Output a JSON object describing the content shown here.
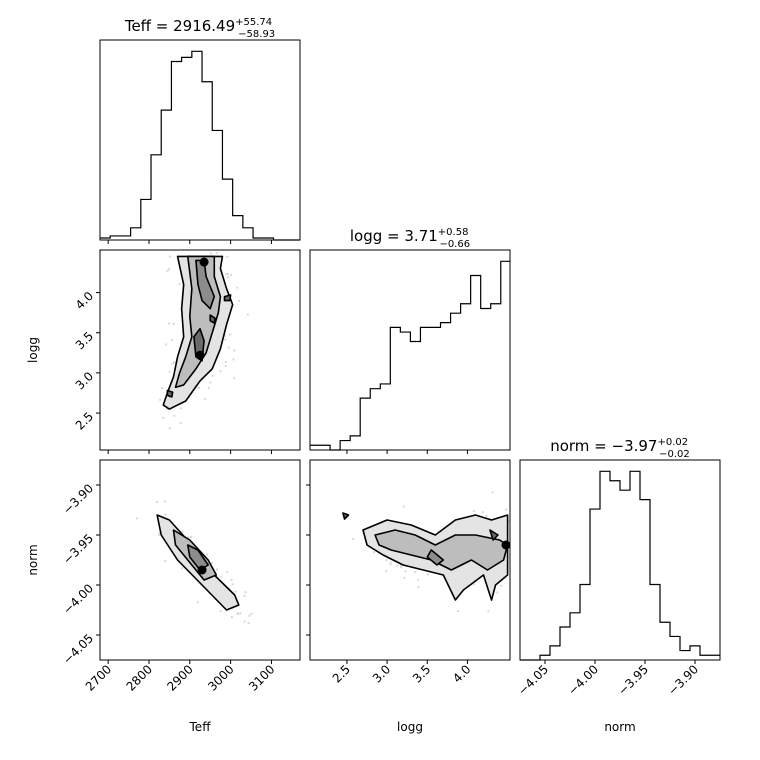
{
  "chart_data": {
    "type": "corner",
    "parameters": [
      {
        "name": "Teff",
        "title": "Teff = 2916.49",
        "title_plus": "+55.74",
        "title_minus": "−58.93",
        "range": [
          2680,
          3170
        ],
        "ticks": [
          2700,
          2800,
          2900,
          3000,
          3100
        ],
        "tick_labels": [
          "2700",
          "2800",
          "2900",
          "3000",
          "3100"
        ],
        "xlabel": "Teff",
        "ylabel": "",
        "hist": {
          "edges": [
            2680,
            2705,
            2730,
            2755,
            2780,
            2805,
            2830,
            2855,
            2880,
            2905,
            2930,
            2955,
            2980,
            3005,
            3030,
            3055,
            3080,
            3105,
            3130,
            3170
          ],
          "counts": [
            1,
            2,
            2,
            6,
            20,
            42,
            64,
            88,
            90,
            93,
            78,
            54,
            30,
            12,
            6,
            1,
            1,
            0,
            0
          ]
        }
      },
      {
        "name": "logg",
        "title": "logg = 3.71",
        "title_plus": "+0.58",
        "title_minus": "−0.66",
        "range": [
          2.04,
          4.53
        ],
        "ticks": [
          2.5,
          3.0,
          3.5,
          4.0
        ],
        "tick_labels": [
          "2.5",
          "3.0",
          "3.5",
          "4.0"
        ],
        "xlabel": "logg",
        "ylabel": "logg",
        "hist": {
          "edges": [
            2.04,
            2.165,
            2.29,
            2.415,
            2.54,
            2.665,
            2.79,
            2.915,
            3.04,
            3.165,
            3.29,
            3.415,
            3.54,
            3.665,
            3.79,
            3.915,
            4.04,
            4.165,
            4.29,
            4.415,
            4.53
          ],
          "counts": [
            1,
            1,
            0,
            2,
            3,
            11,
            13,
            14,
            26,
            25,
            23,
            26,
            26,
            27,
            29,
            31,
            37,
            30,
            31,
            40
          ]
        }
      },
      {
        "name": "norm",
        "title": "norm = −3.97",
        "title_plus": "+0.02",
        "title_minus": "−0.02",
        "range": [
          -4.075,
          -3.875
        ],
        "ticks": [
          -4.05,
          -4.0,
          -3.95,
          -3.9
        ],
        "tick_labels": [
          "−4.05",
          "−4.00",
          "−3.95",
          "−3.90"
        ],
        "xlabel": "norm",
        "ylabel": "norm",
        "hist": {
          "edges": [
            -4.075,
            -4.065,
            -4.055,
            -4.045,
            -4.035,
            -4.025,
            -4.015,
            -4.005,
            -3.995,
            -3.985,
            -3.975,
            -3.965,
            -3.955,
            -3.945,
            -3.935,
            -3.925,
            -3.915,
            -3.905,
            -3.895,
            -3.885,
            -3.875
          ],
          "counts": [
            0,
            0,
            1,
            3,
            7,
            10,
            16,
            32,
            40,
            38,
            36,
            40,
            34,
            16,
            8,
            5,
            2,
            3,
            1,
            1
          ]
        }
      }
    ],
    "pairs": [
      {
        "x": "Teff",
        "y": "logg",
        "contours": [
          [
            [
              2870,
              4.45
            ],
            [
              2885,
              4.1
            ],
            [
              2880,
              3.8
            ],
            [
              2885,
              3.45
            ],
            [
              2870,
              3.2
            ],
            [
              2860,
              2.95
            ],
            [
              2845,
              2.75
            ],
            [
              2835,
              2.6
            ],
            [
              2850,
              2.55
            ],
            [
              2890,
              2.65
            ],
            [
              2925,
              2.9
            ],
            [
              2955,
              3.05
            ],
            [
              2975,
              3.3
            ],
            [
              2990,
              3.6
            ],
            [
              3005,
              3.85
            ],
            [
              2990,
              4.05
            ],
            [
              2975,
              4.3
            ],
            [
              2980,
              4.45
            ]
          ],
          [
            [
              2895,
              4.45
            ],
            [
              2905,
              4.05
            ],
            [
              2900,
              3.7
            ],
            [
              2905,
              3.45
            ],
            [
              2890,
              3.2
            ],
            [
              2875,
              3.0
            ],
            [
              2865,
              2.82
            ],
            [
              2885,
              2.85
            ],
            [
              2915,
              3.05
            ],
            [
              2940,
              3.25
            ],
            [
              2955,
              3.5
            ],
            [
              2970,
              3.75
            ],
            [
              2975,
              3.95
            ],
            [
              2960,
              4.2
            ],
            [
              2960,
              4.45
            ]
          ],
          [
            [
              2915,
              4.4
            ],
            [
              2920,
              4.1
            ],
            [
              2930,
              3.9
            ],
            [
              2950,
              3.8
            ],
            [
              2960,
              3.95
            ],
            [
              2940,
              4.2
            ],
            [
              2935,
              4.4
            ]
          ],
          [
            [
              2910,
              3.45
            ],
            [
              2915,
              3.2
            ],
            [
              2930,
              3.15
            ],
            [
              2935,
              3.4
            ],
            [
              2925,
              3.55
            ]
          ],
          [
            [
              2950,
              3.72
            ],
            [
              2962,
              3.68
            ],
            [
              2960,
              3.62
            ],
            [
              2950,
              3.65
            ]
          ],
          [
            [
              2985,
              3.95
            ],
            [
              3000,
              3.97
            ],
            [
              2998,
              3.9
            ],
            [
              2985,
              3.9
            ]
          ],
          [
            [
              2845,
              2.78
            ],
            [
              2858,
              2.76
            ],
            [
              2856,
              2.7
            ],
            [
              2845,
              2.72
            ]
          ]
        ],
        "dense_blobs": [
          [
            2935,
            4.38
          ],
          [
            2925,
            3.22
          ]
        ]
      },
      {
        "x": "Teff",
        "y": "norm",
        "contours": [
          [
            [
              2820,
              -3.93
            ],
            [
              2850,
              -3.935
            ],
            [
              2905,
              -3.96
            ],
            [
              2960,
              -3.99
            ],
            [
              3010,
              -4.01
            ],
            [
              3020,
              -4.02
            ],
            [
              2990,
              -4.025
            ],
            [
              2930,
              -4.0
            ],
            [
              2870,
              -3.975
            ],
            [
              2830,
              -3.95
            ]
          ],
          [
            [
              2860,
              -3.945
            ],
            [
              2900,
              -3.955
            ],
            [
              2945,
              -3.975
            ],
            [
              2965,
              -3.99
            ],
            [
              2935,
              -3.995
            ],
            [
              2895,
              -3.975
            ],
            [
              2865,
              -3.96
            ]
          ],
          [
            [
              2895,
              -3.96
            ],
            [
              2920,
              -3.965
            ],
            [
              2945,
              -3.98
            ],
            [
              2925,
              -3.985
            ],
            [
              2900,
              -3.972
            ]
          ]
        ],
        "dense_blobs": [
          [
            2930,
            -3.985
          ]
        ]
      },
      {
        "x": "logg",
        "y": "norm",
        "contours": [
          [
            [
              2.7,
              -3.945
            ],
            [
              3.0,
              -3.935
            ],
            [
              3.3,
              -3.94
            ],
            [
              3.6,
              -3.95
            ],
            [
              3.85,
              -3.935
            ],
            [
              4.1,
              -3.93
            ],
            [
              4.3,
              -3.935
            ],
            [
              4.5,
              -3.93
            ],
            [
              4.5,
              -3.99
            ],
            [
              4.35,
              -4.0
            ],
            [
              4.3,
              -4.015
            ],
            [
              4.2,
              -3.99
            ],
            [
              3.95,
              -4.005
            ],
            [
              3.85,
              -4.015
            ],
            [
              3.7,
              -3.99
            ],
            [
              3.45,
              -3.985
            ],
            [
              3.2,
              -3.98
            ],
            [
              2.95,
              -3.97
            ],
            [
              2.75,
              -3.96
            ]
          ],
          [
            [
              2.85,
              -3.95
            ],
            [
              3.1,
              -3.945
            ],
            [
              3.35,
              -3.95
            ],
            [
              3.6,
              -3.96
            ],
            [
              3.85,
              -3.95
            ],
            [
              4.1,
              -3.95
            ],
            [
              4.4,
              -3.955
            ],
            [
              4.5,
              -3.96
            ],
            [
              4.45,
              -3.975
            ],
            [
              4.25,
              -3.985
            ],
            [
              4.05,
              -3.975
            ],
            [
              3.8,
              -3.985
            ],
            [
              3.55,
              -3.975
            ],
            [
              3.3,
              -3.97
            ],
            [
              3.05,
              -3.965
            ],
            [
              2.9,
              -3.96
            ]
          ],
          [
            [
              3.55,
              -3.965
            ],
            [
              3.7,
              -3.975
            ],
            [
              3.62,
              -3.98
            ],
            [
              3.5,
              -3.972
            ]
          ],
          [
            [
              4.28,
              -3.945
            ],
            [
              4.38,
              -3.95
            ],
            [
              4.32,
              -3.955
            ]
          ],
          [
            [
              2.45,
              -3.928
            ],
            [
              2.52,
              -3.93
            ],
            [
              2.47,
              -3.934
            ]
          ]
        ],
        "dense_blobs": [
          [
            4.48,
            -3.96
          ]
        ]
      }
    ]
  }
}
